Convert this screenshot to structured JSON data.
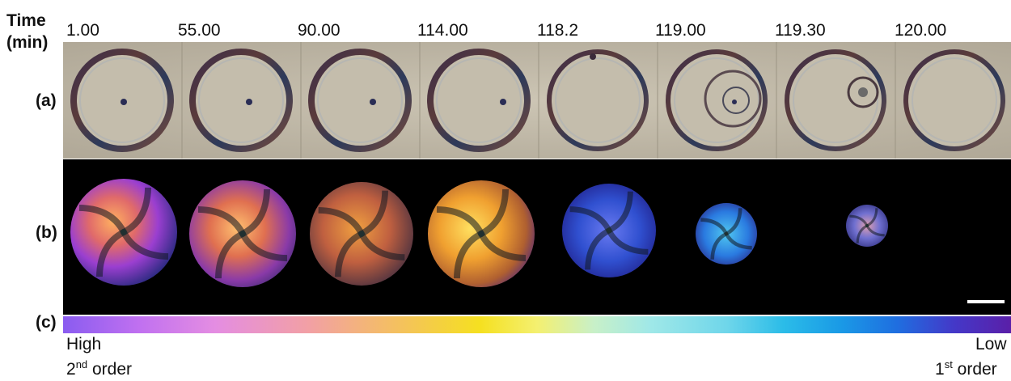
{
  "time_header": {
    "line1": "Time",
    "line2": "(min)"
  },
  "times": [
    "1.00",
    "55.00",
    "90.00",
    "114.00",
    "118.2",
    "119.00",
    "119.30",
    "120.00"
  ],
  "row_labels": {
    "a": "(a)",
    "b": "(b)",
    "c": "(c)"
  },
  "scale": {
    "high": "High",
    "high_order_num": "2",
    "high_order_sup": "nd",
    "high_order_word": " order",
    "low": "Low",
    "low_order_num": "1",
    "low_order_sup": "st",
    "low_order_word": " order"
  },
  "colors": {
    "background_b": "#000000",
    "row_a_background": "#bdb5a3"
  }
}
